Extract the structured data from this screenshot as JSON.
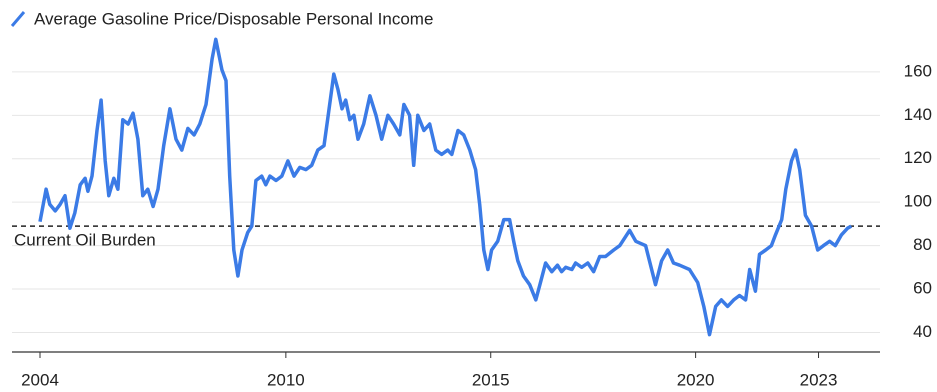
{
  "chart_data": {
    "type": "line",
    "series": [
      {
        "name": "Average Gasoline Price/Disposable Personal Income",
        "color": "#3b7be6",
        "x": [
          2004.0,
          2004.15,
          2004.24,
          2004.37,
          2004.49,
          2004.61,
          2004.73,
          2004.85,
          2004.98,
          2005.1,
          2005.17,
          2005.27,
          2005.39,
          2005.49,
          2005.59,
          2005.68,
          2005.8,
          2005.9,
          2006.02,
          2006.15,
          2006.27,
          2006.39,
          2006.51,
          2006.63,
          2006.76,
          2006.88,
          2007.02,
          2007.17,
          2007.32,
          2007.46,
          2007.61,
          2007.76,
          2007.9,
          2008.05,
          2008.2,
          2008.29,
          2008.44,
          2008.54,
          2008.63,
          2008.73,
          2008.83,
          2008.93,
          2009.07,
          2009.17,
          2009.27,
          2009.41,
          2009.51,
          2009.61,
          2009.76,
          2009.9,
          2010.05,
          2010.2,
          2010.34,
          2010.49,
          2010.63,
          2010.78,
          2010.93,
          2011.02,
          2011.17,
          2011.27,
          2011.37,
          2011.46,
          2011.56,
          2011.66,
          2011.76,
          2011.9,
          2012.05,
          2012.2,
          2012.34,
          2012.49,
          2012.63,
          2012.78,
          2012.88,
          2013.02,
          2013.12,
          2013.22,
          2013.37,
          2013.51,
          2013.66,
          2013.8,
          2013.95,
          2014.05,
          2014.2,
          2014.34,
          2014.49,
          2014.63,
          2014.73,
          2014.83,
          2014.93,
          2015.02,
          2015.17,
          2015.32,
          2015.46,
          2015.56,
          2015.66,
          2015.8,
          2015.95,
          2016.1,
          2016.2,
          2016.34,
          2016.49,
          2016.63,
          2016.73,
          2016.83,
          2016.98,
          2017.07,
          2017.22,
          2017.37,
          2017.51,
          2017.66,
          2017.8,
          2018.0,
          2018.15,
          2018.39,
          2018.54,
          2018.78,
          2019.02,
          2019.17,
          2019.32,
          2019.46,
          2019.61,
          2019.85,
          2020.05,
          2020.2,
          2020.34,
          2020.49,
          2020.63,
          2020.78,
          2020.93,
          2021.07,
          2021.22,
          2021.32,
          2021.46,
          2021.56,
          2021.71,
          2021.85,
          2021.95,
          2022.1,
          2022.2,
          2022.34,
          2022.44,
          2022.54,
          2022.68,
          2022.83,
          2022.98,
          2023.12,
          2023.27,
          2023.41,
          2023.56,
          2023.71,
          2023.8
        ],
        "values": [
          91,
          106,
          99,
          96,
          99,
          103,
          88,
          95,
          108,
          111,
          105,
          112,
          133,
          147,
          119,
          103,
          111,
          106,
          138,
          136,
          141,
          129,
          103,
          106,
          98,
          106,
          126,
          143,
          129,
          124,
          134,
          131,
          136,
          145,
          166,
          175,
          161,
          156,
          112,
          78,
          66,
          78,
          86,
          89,
          110,
          112,
          108,
          112,
          110,
          112,
          119,
          112,
          116,
          115,
          117,
          124,
          126,
          138,
          159,
          152,
          143,
          147,
          138,
          140,
          129,
          136,
          149,
          140,
          129,
          140,
          136,
          131,
          145,
          140,
          117,
          140,
          133,
          136,
          124,
          122,
          124,
          122,
          133,
          131,
          124,
          115,
          99,
          78,
          69,
          78,
          82,
          92,
          92,
          82,
          73,
          66,
          62,
          55,
          62,
          72,
          68,
          71,
          68,
          70,
          69,
          72,
          70,
          72,
          68,
          75,
          75,
          78,
          80,
          87,
          82,
          80,
          62,
          73,
          78,
          72,
          71,
          69,
          63,
          52,
          39,
          52,
          55,
          52,
          55,
          57,
          55,
          69,
          59,
          76,
          78,
          80,
          85,
          92,
          106,
          119,
          124,
          115,
          94,
          89,
          78,
          80,
          82,
          80,
          85,
          88,
          89
        ]
      }
    ],
    "reference_line": {
      "value": 89,
      "label": "Current Oil Burden"
    },
    "xlim": [
      2004,
      2024.5
    ],
    "xticks": [
      2004,
      2010,
      2015,
      2020,
      2023
    ],
    "ylim": [
      31,
      177
    ],
    "yticks": [
      40,
      60,
      80,
      100,
      120,
      140,
      160
    ],
    "grid": true
  }
}
